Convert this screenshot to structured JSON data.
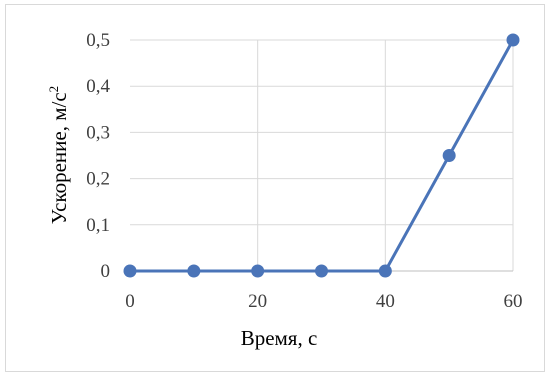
{
  "chart_data": {
    "type": "line",
    "title": "",
    "xlabel": "Время, с",
    "ylabel": "Ускорение, м/с",
    "ylabel_superscript": "2",
    "x": [
      0,
      10,
      20,
      30,
      40,
      50,
      60
    ],
    "series": [
      {
        "values": [
          0,
          0,
          0,
          0,
          0,
          0.25,
          0.5
        ]
      }
    ],
    "x_ticks": [
      0,
      20,
      40,
      60
    ],
    "x_tick_labels": [
      "0",
      "20",
      "40",
      "60"
    ],
    "y_ticks": [
      0,
      0.1,
      0.2,
      0.3,
      0.4,
      0.5
    ],
    "y_tick_labels": [
      "0",
      "0,1",
      "0,2",
      "0,3",
      "0,4",
      "0,5"
    ],
    "xlim": [
      0,
      60
    ],
    "ylim": [
      0,
      0.5
    ],
    "grid": true,
    "legend": "none",
    "colors": {
      "series": "#4a74b8",
      "grid": "#d9d9d9",
      "axis": "#bfbfbf"
    }
  }
}
